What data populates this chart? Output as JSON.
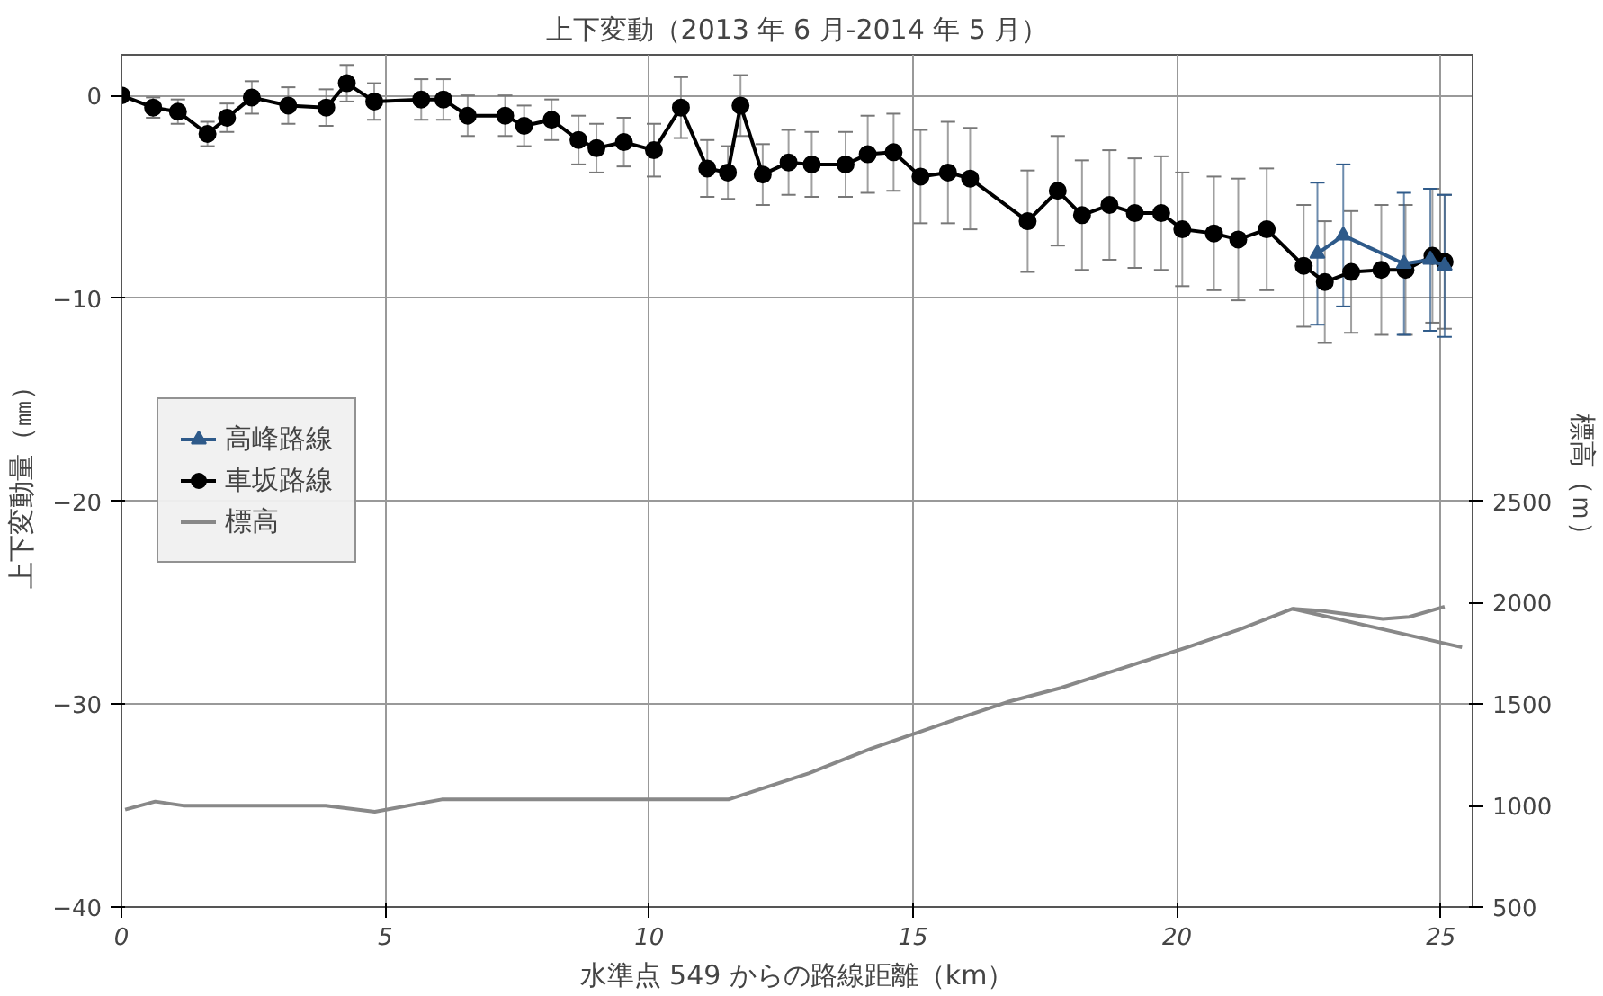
{
  "chart_data": {
    "type": "line",
    "title": "上下変動（2013 年 6 月-2014 年 5 月）",
    "xlabel": "水準点 549 からの路線距離（km）",
    "ylabel": "上下変動量（㎜）",
    "y2label": "標高（ｍ）",
    "xlim": [
      0,
      25.6
    ],
    "xticks": [
      0,
      5,
      10,
      15,
      20,
      25
    ],
    "ylim": [
      -40,
      2
    ],
    "yticks": [
      -40,
      -30,
      -20,
      -10,
      0
    ],
    "y2lim": [
      500,
      4700
    ],
    "y2ticks": [
      500,
      1000,
      1500,
      2000,
      2500
    ],
    "grid": true,
    "legend": "left",
    "series": [
      {
        "name": "高峰路線",
        "color": "#2e5a8a",
        "marker": "triangle",
        "x": [
          22.66,
          23.15,
          24.3,
          24.8,
          25.07
        ],
        "values": [
          -7.8,
          -6.9,
          -8.3,
          -8.1,
          -8.4
        ],
        "errors": [
          3.5,
          3.5,
          3.5,
          3.5,
          3.5
        ]
      },
      {
        "name": "車坂路線",
        "color": "#000000",
        "marker": "circle",
        "x": [
          0,
          0.6,
          1.07,
          1.63,
          2.0,
          2.47,
          3.16,
          3.88,
          4.27,
          4.79,
          5.68,
          6.1,
          6.56,
          7.27,
          7.63,
          8.15,
          8.66,
          9.0,
          9.52,
          10.09,
          10.6,
          11.1,
          11.49,
          11.73,
          12.15,
          12.64,
          13.08,
          13.72,
          14.14,
          14.63,
          15.14,
          15.66,
          16.08,
          17.17,
          17.74,
          18.2,
          18.72,
          19.2,
          19.7,
          20.1,
          20.7,
          21.16,
          21.7,
          22.4,
          22.8,
          23.3,
          23.87,
          24.33,
          24.84,
          25.07
        ],
        "values": [
          0,
          -0.6,
          -0.8,
          -1.9,
          -1.1,
          -0.1,
          -0.5,
          -0.6,
          0.6,
          -0.3,
          -0.2,
          -0.2,
          -1.0,
          -1.0,
          -1.5,
          -1.2,
          -2.2,
          -2.6,
          -2.3,
          -2.7,
          -0.6,
          -3.6,
          -3.8,
          -0.5,
          -3.9,
          -3.3,
          -3.4,
          -3.4,
          -2.9,
          -2.8,
          -4.0,
          -3.8,
          -4.1,
          -6.2,
          -4.7,
          -5.9,
          -5.4,
          -5.8,
          -5.8,
          -6.6,
          -6.8,
          -7.1,
          -6.6,
          -8.4,
          -9.2,
          -8.7,
          -8.6,
          -8.6,
          -7.9,
          -8.2
        ],
        "errors": [
          null,
          0.5,
          0.6,
          0.6,
          0.7,
          0.8,
          0.9,
          0.9,
          0.9,
          0.9,
          1.0,
          1.0,
          1.0,
          1.0,
          1.0,
          1.0,
          1.2,
          1.2,
          1.2,
          1.3,
          1.5,
          1.4,
          1.3,
          1.5,
          1.5,
          1.6,
          1.6,
          1.6,
          1.9,
          1.9,
          2.3,
          2.5,
          2.5,
          2.5,
          2.7,
          2.7,
          2.7,
          2.7,
          2.8,
          2.8,
          2.8,
          3.0,
          3.0,
          3.0,
          3.0,
          3.0,
          3.2,
          3.2,
          3.3,
          3.3
        ]
      },
      {
        "name": "標高",
        "color": "#888888",
        "marker": "none",
        "axis": "y2",
        "x": [
          0.07,
          0.64,
          1.17,
          3.87,
          4.8,
          6.07,
          11.5,
          13.03,
          14.2,
          15.75,
          16.78,
          17.8,
          19.0,
          20.19,
          21.2,
          22.19,
          22.74,
          23.9,
          24.4,
          25.07
        ],
        "values": [
          980,
          1020,
          1000,
          1000,
          970,
          1030,
          1030,
          1160,
          1280,
          1420,
          1510,
          1580,
          1680,
          1780,
          1870,
          1970,
          1960,
          1920,
          1930,
          1980
        ]
      },
      {
        "color": "#888888",
        "marker": "none",
        "axis": "y2",
        "x": [
          22.19,
          25.4
        ],
        "values": [
          1970,
          1780
        ]
      }
    ]
  }
}
